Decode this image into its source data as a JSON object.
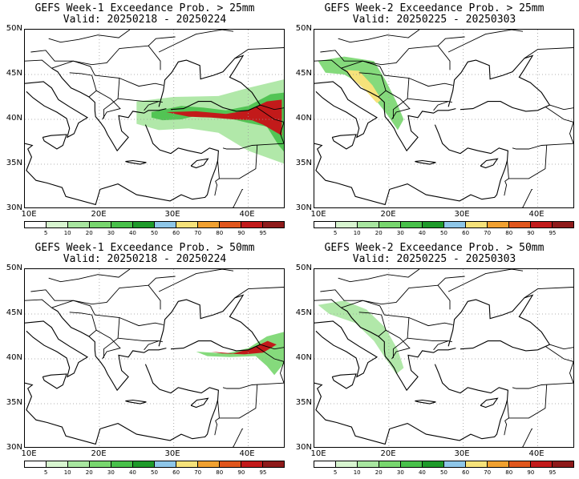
{
  "panels": [
    {
      "title_line1": "GEFS Week-1 Exceedance Prob. > 25mm",
      "title_line2": "Valid: 20250218 - 20250224",
      "threshold": "25mm",
      "week": 1,
      "fields": [
        {
          "level": "light",
          "shapes": [
            "wide-east"
          ]
        },
        {
          "level": "high",
          "shapes": [
            "turkey-north-band"
          ]
        }
      ]
    },
    {
      "title_line1": "GEFS Week-2 Exceedance Prob. > 25mm",
      "title_line2": "Valid: 20250225 - 20250303",
      "threshold": "25mm",
      "week": 2,
      "fields": [
        {
          "level": "medium",
          "shapes": [
            "adriatic-band"
          ]
        }
      ]
    },
    {
      "title_line1": "GEFS Week-1 Exceedance Prob. > 50mm",
      "title_line2": "Valid: 20250218 - 20250224",
      "threshold": "50mm",
      "week": 1,
      "fields": [
        {
          "level": "high",
          "shapes": [
            "black-sea-coast"
          ]
        }
      ]
    },
    {
      "title_line1": "GEFS Week-2 Exceedance Prob. > 50mm",
      "title_line2": "Valid: 20250225 - 20250303",
      "threshold": "50mm",
      "week": 2,
      "fields": [
        {
          "level": "light",
          "shapes": [
            "adriatic-thin"
          ]
        }
      ]
    }
  ],
  "axes": {
    "y_ticks": [
      "50N",
      "45N",
      "40N",
      "35N",
      "30N"
    ],
    "x_ticks": [
      "10E",
      "20E",
      "30E",
      "40E"
    ]
  },
  "colorbar": {
    "labels": [
      "5",
      "10",
      "20",
      "30",
      "40",
      "50",
      "60",
      "70",
      "80",
      "90",
      "95"
    ],
    "colors": [
      "#ffffff",
      "#d8f5d0",
      "#a8e6a0",
      "#78d66e",
      "#48c04a",
      "#1e9a2a",
      "#8ec6e8",
      "#f6e27a",
      "#f0a030",
      "#e0561c",
      "#c21a1a",
      "#8e1a1a"
    ]
  }
}
